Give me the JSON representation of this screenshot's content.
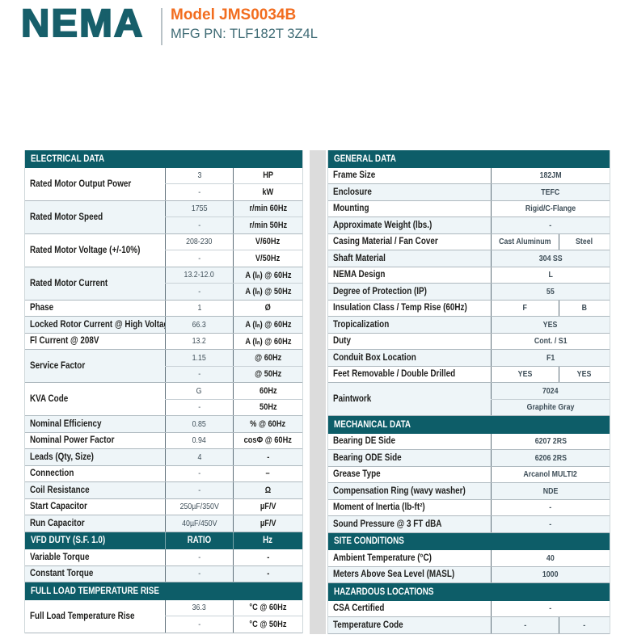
{
  "header": {
    "logo": "NEMA",
    "model": "Model JMS0034B",
    "mfg_pn": "MFG PN: TLF182T 3Z4L"
  },
  "colors": {
    "teal_header": "#0d5d68",
    "logo_teal": "#175f6a",
    "orange_accent": "#f26d1f",
    "row_tint": "#eef5f8",
    "gutter_gray": "#dcdcdc"
  },
  "left_table": {
    "sections": [
      {
        "title": "ELECTRICAL DATA",
        "rows": [
          {
            "label": "Rated Motor Output Power",
            "subs": [
              {
                "value": "3",
                "unit": "HP"
              },
              {
                "value": "-",
                "unit": "kW"
              }
            ]
          },
          {
            "label": "Rated Motor Speed",
            "subs": [
              {
                "value": "1755",
                "unit": "r/min 60Hz"
              },
              {
                "value": "-",
                "unit": "r/min 50Hz"
              }
            ]
          },
          {
            "label": "Rated Motor Voltage (+/-10%)",
            "subs": [
              {
                "value": "208-230",
                "unit": "V/60Hz"
              },
              {
                "value": "-",
                "unit": "V/50Hz"
              }
            ]
          },
          {
            "label": "Rated Motor Current",
            "subs": [
              {
                "value": "13.2-12.0",
                "unit": "A (Iₙ) @ 60Hz"
              },
              {
                "value": "-",
                "unit": "A (Iₙ) @ 50Hz"
              }
            ]
          },
          {
            "label": "Phase",
            "subs": [
              {
                "value": "1",
                "unit": "Ø"
              }
            ]
          },
          {
            "label": "Locked Rotor Current @ High Voltage",
            "subs": [
              {
                "value": "66.3",
                "unit": "A (Iₙ) @ 60Hz"
              }
            ]
          },
          {
            "label": "Fl Current @ 208V",
            "subs": [
              {
                "value": "13.2",
                "unit": "A (Iₙ) @ 60Hz"
              }
            ]
          },
          {
            "label": "Service Factor",
            "subs": [
              {
                "value": "1.15",
                "unit": "@ 60Hz"
              },
              {
                "value": "-",
                "unit": "@ 50Hz"
              }
            ]
          },
          {
            "label": "KVA Code",
            "subs": [
              {
                "value": "G",
                "unit": "60Hz"
              },
              {
                "value": "-",
                "unit": "50Hz"
              }
            ]
          },
          {
            "label": "Nominal Efficiency",
            "subs": [
              {
                "value": "0.85",
                "unit": "% @ 60Hz"
              }
            ]
          },
          {
            "label": "Nominal Power Factor",
            "subs": [
              {
                "value": "0.94",
                "unit": "cosΦ @ 60Hz"
              }
            ]
          },
          {
            "label": "Leads (Qty, Size)",
            "subs": [
              {
                "value": "4",
                "unit": "-"
              }
            ]
          },
          {
            "label": "Connection",
            "subs": [
              {
                "value": "-",
                "unit": "–"
              }
            ]
          },
          {
            "label": "Coil Resistance",
            "subs": [
              {
                "value": "-",
                "unit": "Ω"
              }
            ]
          },
          {
            "label": "Start Capacitor",
            "subs": [
              {
                "value": "250µF/350V",
                "unit": "µF/V"
              }
            ]
          },
          {
            "label": "Run Capacitor",
            "subs": [
              {
                "value": "40µF/450V",
                "unit": "µF/V"
              }
            ]
          }
        ]
      },
      {
        "title": "VFD DUTY (S.F. 1.0)",
        "header_cols": [
          "RATIO",
          "Hz"
        ],
        "rows": [
          {
            "label": "Variable Torque",
            "subs": [
              {
                "value": "-",
                "unit": "-"
              }
            ]
          },
          {
            "label": "Constant Torque",
            "subs": [
              {
                "value": "-",
                "unit": "-"
              }
            ]
          }
        ]
      },
      {
        "title": "FULL LOAD TEMPERATURE RISE",
        "rows": [
          {
            "label": "Full Load Temperature Rise",
            "subs": [
              {
                "value": "36.3",
                "unit": "°C @ 60Hz"
              },
              {
                "value": "-",
                "unit": "°C @ 50Hz"
              }
            ]
          }
        ]
      }
    ]
  },
  "right_table": {
    "sections": [
      {
        "title": "GENERAL DATA",
        "rows": [
          {
            "label": "Frame Size",
            "values": [
              "182JM"
            ]
          },
          {
            "label": "Enclosure",
            "values": [
              "TEFC"
            ]
          },
          {
            "label": "Mounting",
            "values": [
              "Rigid/C-Flange"
            ]
          },
          {
            "label": "Approximate Weight (lbs.)",
            "values": [
              "-"
            ]
          },
          {
            "label": "Casing Material / Fan Cover",
            "values": [
              "Cast Aluminum",
              "Steel"
            ]
          },
          {
            "label": "Shaft Material",
            "values": [
              "304 SS"
            ]
          },
          {
            "label": "NEMA Design",
            "values": [
              "L"
            ]
          },
          {
            "label": "Degree of Protection (IP)",
            "values": [
              "55"
            ]
          },
          {
            "label": "Insulation Class / Temp Rise (60Hz)",
            "values": [
              "F",
              "B"
            ]
          },
          {
            "label": "Tropicalization",
            "values": [
              "YES"
            ]
          },
          {
            "label": "Duty",
            "values": [
              "Cont. / S1"
            ]
          },
          {
            "label": "Conduit Box Location",
            "values": [
              "F1"
            ]
          },
          {
            "label": "Feet Removable / Double Drilled",
            "values": [
              "YES",
              "YES"
            ]
          },
          {
            "label": "Paintwork",
            "stacked": [
              "7024",
              "Graphite Gray"
            ]
          }
        ]
      },
      {
        "title": "MECHANICAL DATA",
        "rows": [
          {
            "label": "Bearing DE Side",
            "values": [
              "6207 2RS"
            ]
          },
          {
            "label": "Bearing ODE Side",
            "values": [
              "6206 2RS"
            ]
          },
          {
            "label": "Grease Type",
            "values": [
              "Arcanol MULTI2"
            ]
          },
          {
            "label": "Compensation Ring (wavy washer)",
            "values": [
              "NDE"
            ]
          },
          {
            "label": "Moment of Inertia (lb-ft²)",
            "values": [
              "-"
            ]
          },
          {
            "label": "Sound Pressure @ 3 FT dBA",
            "values": [
              "-"
            ]
          }
        ]
      },
      {
        "title": "SITE CONDITIONS",
        "rows": [
          {
            "label": "Ambient Temperature (°C)",
            "values": [
              "40"
            ]
          },
          {
            "label": "Meters Above Sea Level (MASL)",
            "values": [
              "1000"
            ]
          }
        ]
      },
      {
        "title": "HAZARDOUS LOCATIONS",
        "rows": [
          {
            "label": "CSA Certified",
            "values": [
              "-"
            ]
          },
          {
            "label": "Temperature Code",
            "values": [
              "-",
              "-"
            ]
          }
        ]
      }
    ]
  }
}
